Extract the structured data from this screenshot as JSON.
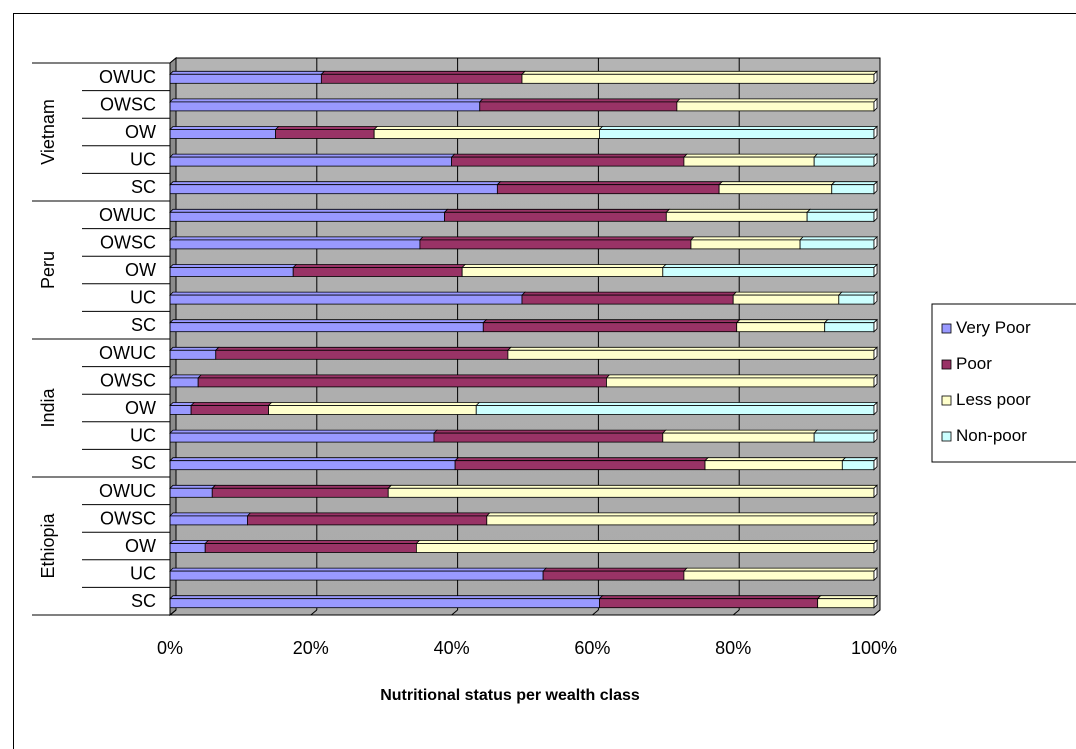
{
  "chart_data": {
    "type": "bar",
    "orientation": "horizontal",
    "stacked": "percent",
    "xlabel": "Nutritional status per wealth class",
    "xlim": [
      0,
      100
    ],
    "x_ticks": [
      "0%",
      "20%",
      "40%",
      "60%",
      "80%",
      "100%"
    ],
    "grid": true,
    "legend_position": "right",
    "groups": [
      "Ethiopia",
      "India",
      "Peru",
      "Vietnam"
    ],
    "categories": [
      "SC",
      "UC",
      "OW",
      "OWSC",
      "OWUC"
    ],
    "series": [
      {
        "name": "Very Poor",
        "color": "#9999ff"
      },
      {
        "name": "Poor",
        "color": "#993366"
      },
      {
        "name": "Less poor",
        "color": "#ffffcc"
      },
      {
        "name": "Non-poor",
        "color": "#ccffff"
      }
    ],
    "values": {
      "Ethiopia": {
        "SC": [
          61,
          31,
          8,
          0
        ],
        "UC": [
          53,
          20,
          27,
          0
        ],
        "OW": [
          5,
          30,
          65,
          0
        ],
        "OWSC": [
          11,
          34,
          55,
          0
        ],
        "OWUC": [
          6,
          25,
          69,
          0
        ]
      },
      "India": {
        "SC": [
          40.5,
          35.5,
          19.5,
          4.5
        ],
        "UC": [
          37.5,
          32.5,
          21.5,
          8.5
        ],
        "OW": [
          3,
          11,
          29.5,
          56.5
        ],
        "OWSC": [
          4,
          58,
          38,
          0
        ],
        "OWUC": [
          6.5,
          41.5,
          52,
          0
        ]
      },
      "Peru": {
        "SC": [
          44.5,
          36,
          12.5,
          7
        ],
        "UC": [
          50,
          30,
          15,
          5
        ],
        "OW": [
          17.5,
          24,
          28.5,
          30
        ],
        "OWSC": [
          35.5,
          38.5,
          15.5,
          10.5
        ],
        "OWUC": [
          39,
          31.5,
          20,
          9.5
        ]
      },
      "Vietnam": {
        "SC": [
          46.5,
          31.5,
          16,
          6
        ],
        "UC": [
          40,
          33,
          18.5,
          8.5
        ],
        "OW": [
          15,
          14,
          32,
          39
        ],
        "OWSC": [
          44,
          28,
          28,
          0
        ],
        "OWUC": [
          21.5,
          28.5,
          50,
          0
        ]
      }
    }
  }
}
